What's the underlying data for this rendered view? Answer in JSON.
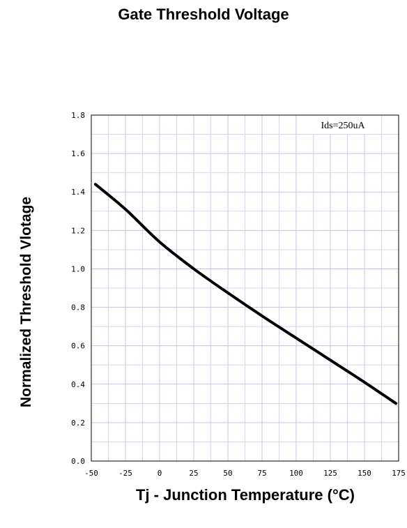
{
  "chart_data": {
    "type": "line",
    "title": "Gate Threshold Voltage",
    "xlabel": "Tj - Junction Temperature (°C)",
    "ylabel": "Normalized Threshold Vlotage",
    "xlim": [
      -50,
      175
    ],
    "ylim": [
      0.0,
      1.8
    ],
    "x_ticks": [
      "-50",
      "-25",
      "0",
      "25",
      "50",
      "75",
      "100",
      "125",
      "150",
      "175"
    ],
    "y_ticks": [
      "0.0",
      "0.2",
      "0.4",
      "0.6",
      "0.8",
      "1.0",
      "1.2",
      "1.4",
      "1.6",
      "1.8"
    ],
    "grid": true,
    "annotation": "Ids=250uA",
    "series": [
      {
        "x": [
          -47,
          -25,
          0,
          25,
          50,
          75,
          100,
          125,
          150,
          173
        ],
        "y": [
          1.44,
          1.31,
          1.14,
          1.0,
          0.875,
          0.755,
          0.64,
          0.525,
          0.41,
          0.3
        ]
      }
    ]
  }
}
